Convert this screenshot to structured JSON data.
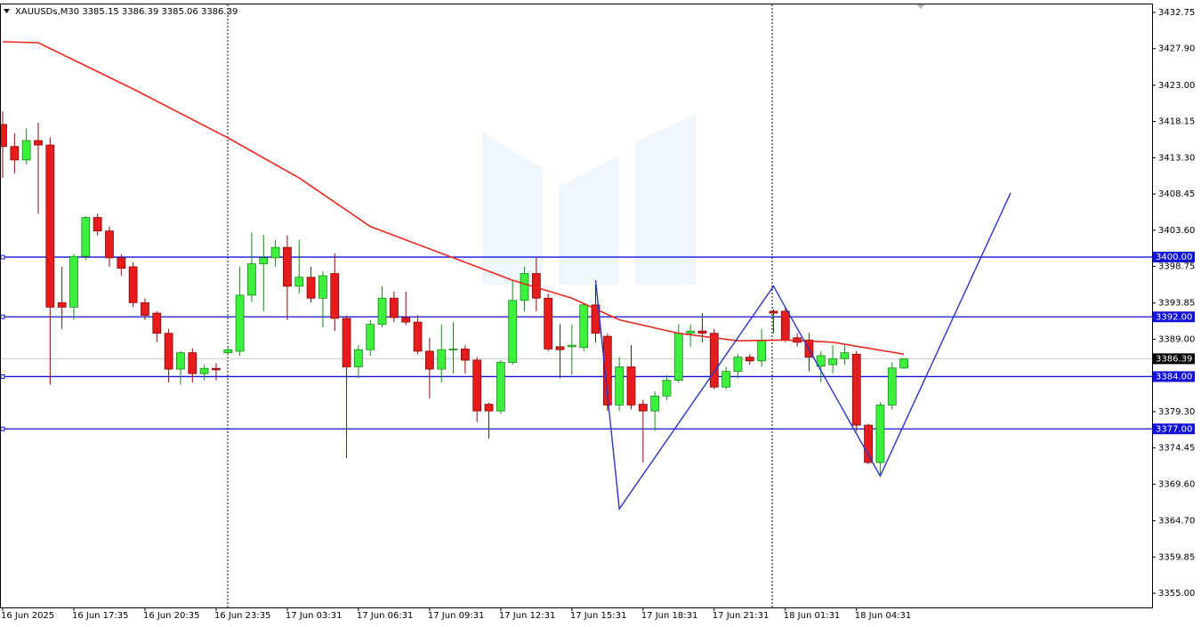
{
  "chart_data": {
    "type": "candlestick",
    "title": "XAUUSDs,M30",
    "categories": [
      "16 Jun 2025",
      null,
      null,
      null,
      null,
      null,
      "16 Jun 17:35",
      null,
      null,
      null,
      null,
      null,
      "16 Jun 20:35",
      null,
      null,
      null,
      null,
      null,
      "16 Jun 23:35",
      null,
      null,
      null,
      null,
      null,
      "17 Jun 03:31",
      null,
      null,
      null,
      null,
      null,
      "17 Jun 06:31",
      null,
      null,
      null,
      null,
      null,
      "17 Jun 09:31",
      null,
      null,
      null,
      null,
      null,
      "17 Jun 12:31",
      null,
      null,
      null,
      null,
      null,
      "17 Jun 15:31",
      null,
      null,
      null,
      null,
      null,
      "17 Jun 18:31",
      null,
      null,
      null,
      null,
      null,
      "17 Jun 21:31",
      null,
      null,
      null,
      null,
      null,
      "18 Jun 01:31",
      null,
      null,
      null,
      null,
      null,
      "18 Jun 04:31",
      null,
      null,
      null,
      null
    ],
    "open": [
      3417.75,
      3414.8,
      3413.0,
      3415.6,
      3415.0,
      3393.9,
      3393.3,
      3400.1,
      3405.3,
      3403.5,
      3399.9,
      3398.7,
      3393.9,
      3392.5,
      3389.8,
      3385.0,
      3387.2,
      3384.4,
      3385.1,
      3387.2,
      3387.4,
      3394.9,
      3399.1,
      3399.9,
      3401.3,
      3396.1,
      3397.3,
      3394.5,
      3397.8,
      3391.8,
      3385.3,
      3387.6,
      3391.0,
      3394.5,
      3391.9,
      3391.3,
      3387.4,
      3385.0,
      3387.6,
      3387.7,
      3386.2,
      3380.3,
      3379.4,
      3385.9,
      3394.2,
      3397.8,
      3394.5,
      3388.0,
      3388.0,
      3387.9,
      3393.6,
      3389.4,
      3380.2,
      3385.3,
      3380.3,
      3379.4,
      3381.4,
      3383.5,
      3389.8,
      3390.1,
      3389.8,
      3382.6,
      3384.7,
      3386.6,
      3386.1,
      3392.75,
      3392.75,
      3389.2,
      3388.9,
      3385.4,
      3385.6,
      3386.4,
      3387.0,
      3377.5,
      3372.5,
      3380.2,
      3385.15
    ],
    "high": [
      3419.5,
      3416.6,
      3417.2,
      3418.0,
      3416.0,
      3398.7,
      3400.4,
      3405.5,
      3405.8,
      3404.1,
      3400.4,
      3399.3,
      3394.5,
      3392.75,
      3390.4,
      3387.4,
      3387.8,
      3385.6,
      3385.8,
      3388.0,
      3398.7,
      3403.3,
      3403.0,
      3402.3,
      3402.9,
      3402.3,
      3398.7,
      3398.1,
      3400.5,
      3392.2,
      3388.2,
      3391.6,
      3396.1,
      3395.4,
      3395.4,
      3392.2,
      3389.2,
      3391.0,
      3391.3,
      3388.2,
      3386.6,
      3380.5,
      3386.2,
      3396.9,
      3398.7,
      3399.9,
      3395.1,
      3391.0,
      3390.9,
      3393.9,
      3396.3,
      3389.8,
      3386.6,
      3388.2,
      3380.9,
      3382.0,
      3384.2,
      3391.0,
      3391.0,
      3392.5,
      3390.4,
      3385.3,
      3387.0,
      3387.0,
      3390.4,
      3393.0,
      3393.3,
      3389.8,
      3389.8,
      3387.4,
      3388.2,
      3388.2,
      3387.4,
      3377.7,
      3380.6,
      3385.9,
      3386.39
    ],
    "low": [
      3410.6,
      3411.2,
      3412.4,
      3405.8,
      3382.9,
      3390.4,
      3391.6,
      3399.6,
      3402.9,
      3398.7,
      3397.5,
      3393.3,
      3391.6,
      3388.6,
      3383.2,
      3382.9,
      3383.2,
      3383.5,
      3383.5,
      3387.0,
      3386.8,
      3394.0,
      3392.75,
      3398.7,
      3391.6,
      3395.1,
      3393.9,
      3390.6,
      3390.1,
      3373.1,
      3383.8,
      3386.8,
      3390.6,
      3391.3,
      3390.9,
      3387.0,
      3381.1,
      3383.2,
      3384.4,
      3384.4,
      3377.9,
      3375.7,
      3379.0,
      3385.6,
      3392.75,
      3392.75,
      3387.4,
      3383.8,
      3384.2,
      3387.4,
      3388.6,
      3379.4,
      3379.4,
      3379.6,
      3372.5,
      3376.7,
      3380.9,
      3383.2,
      3388.0,
      3388.6,
      3382.3,
      3382.3,
      3383.8,
      3385.6,
      3385.3,
      3389.8,
      3388.6,
      3388.0,
      3384.7,
      3383.2,
      3384.4,
      3385.6,
      3376.7,
      3372.3,
      3370.7,
      3379.6,
      3385.06
    ],
    "close": [
      3414.8,
      3413.0,
      3415.6,
      3415.0,
      3393.3,
      3393.3,
      3400.1,
      3405.3,
      3403.5,
      3399.9,
      3398.5,
      3393.9,
      3392.2,
      3389.8,
      3385.0,
      3387.2,
      3384.4,
      3385.1,
      3384.9,
      3387.6,
      3394.9,
      3399.1,
      3399.9,
      3401.3,
      3396.1,
      3397.3,
      3394.5,
      3397.5,
      3391.8,
      3385.3,
      3387.6,
      3391.0,
      3394.5,
      3391.9,
      3391.3,
      3387.4,
      3385.0,
      3387.6,
      3387.7,
      3386.2,
      3379.4,
      3379.4,
      3385.9,
      3394.2,
      3397.8,
      3394.5,
      3387.7,
      3387.6,
      3388.2,
      3393.6,
      3389.8,
      3380.2,
      3385.3,
      3380.2,
      3379.4,
      3381.4,
      3383.5,
      3389.8,
      3390.1,
      3389.8,
      3382.6,
      3384.7,
      3386.6,
      3386.1,
      3388.8,
      3392.5,
      3388.9,
      3388.6,
      3386.6,
      3386.8,
      3386.4,
      3387.2,
      3377.5,
      3372.5,
      3380.2,
      3385.15,
      3386.39
    ],
    "up_color": "#3ef03e",
    "down_color": "#e51c1c",
    "ylim": [
      3353.1,
      3433.82
    ],
    "yticks": [
      3432.75,
      {
        "value": 3427.9,
        "label": "3427.90"
      },
      {
        "value": 3423,
        "label": "3423.00"
      },
      3418.15,
      {
        "value": 3413.3,
        "label": "3413.30"
      },
      3408.45,
      {
        "value": 3403.6,
        "label": "3403.60"
      },
      3398.75,
      3393.85,
      {
        "value": 3389,
        "label": "3389.00"
      },
      3384.15,
      {
        "value": 3379.3,
        "label": "3379.30"
      },
      3374.45,
      {
        "value": 3369.6,
        "label": "3369.60"
      },
      {
        "value": 3364.7,
        "label": "3364.70"
      },
      3359.85,
      {
        "value": 3355,
        "label": "3355.00"
      }
    ],
    "ma": {
      "color": "#e8281e",
      "x": [
        0,
        3,
        11,
        19,
        25,
        31,
        38,
        43,
        48,
        52,
        57,
        62,
        66,
        70,
        76
      ],
      "values": [
        3428.82,
        3428.7,
        3422.51,
        3415.96,
        3410.6,
        3404.1,
        3399.9,
        3396.9,
        3394.5,
        3391.6,
        3389.8,
        3388.8,
        3388.9,
        3388.6,
        3387.0
      ]
    },
    "levels": [
      {
        "value": 3400,
        "label": "3400.00"
      },
      {
        "value": 3392,
        "label": "3392.00"
      },
      {
        "value": 3384,
        "label": "3384.00"
      },
      {
        "value": 3377,
        "label": "3377.00"
      }
    ],
    "level_color": "#1010d8",
    "zigzag": {
      "color": "#2a34c8",
      "x": [
        50,
        52,
        65,
        74,
        85
      ],
      "values": [
        3396.9,
        3366.3,
        3396.1,
        3370.7,
        3408.6
      ]
    }
  }
}
